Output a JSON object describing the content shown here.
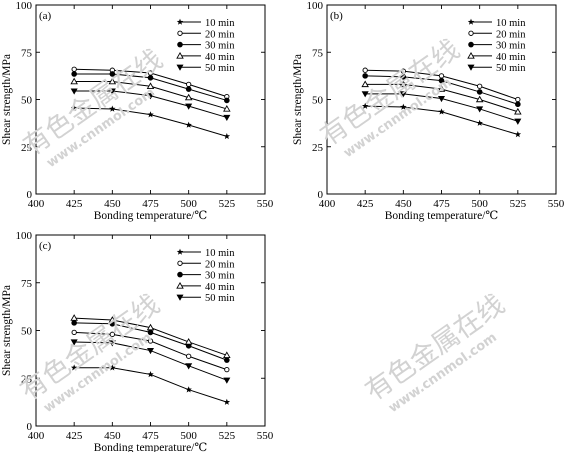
{
  "figure": {
    "watermark": {
      "text": "有色金属在线",
      "url": "www.cnnmol.com"
    }
  },
  "chart_data": [
    {
      "type": "line",
      "panel_label": "(a)",
      "xlabel": "Bonding temperature/℃",
      "ylabel": "Shear strength/MPa",
      "xlim": [
        400,
        550
      ],
      "ylim": [
        0,
        100
      ],
      "xticks": [
        400,
        425,
        450,
        475,
        500,
        525,
        550
      ],
      "yticks": [
        0,
        25,
        50,
        75,
        100
      ],
      "grid": false,
      "legend_position": "top-right",
      "x": [
        425,
        450,
        475,
        500,
        525
      ],
      "series": [
        {
          "name": "10 min",
          "marker": "star",
          "values": [
            45.5,
            45.0,
            42.0,
            36.5,
            30.5
          ]
        },
        {
          "name": "20 min",
          "marker": "circle-open",
          "values": [
            66.0,
            65.5,
            64.0,
            58.0,
            51.5
          ]
        },
        {
          "name": "30 min",
          "marker": "circle-filled",
          "values": [
            63.5,
            63.5,
            61.5,
            55.5,
            49.5
          ]
        },
        {
          "name": "40 min",
          "marker": "triangle-up-open",
          "values": [
            59.5,
            59.5,
            57.0,
            51.0,
            45.0
          ]
        },
        {
          "name": "50 min",
          "marker": "triangle-down",
          "values": [
            54.5,
            54.5,
            52.0,
            46.5,
            40.5
          ]
        }
      ]
    },
    {
      "type": "line",
      "panel_label": "(b)",
      "xlabel": "Bonding temperature/℃",
      "ylabel": "Shear strength/MPa",
      "xlim": [
        400,
        550
      ],
      "ylim": [
        0,
        100
      ],
      "xticks": [
        400,
        425,
        450,
        475,
        500,
        525,
        550
      ],
      "yticks": [
        0,
        25,
        50,
        75,
        100
      ],
      "grid": false,
      "legend_position": "top-right",
      "x": [
        425,
        450,
        475,
        500,
        525
      ],
      "series": [
        {
          "name": "10 min",
          "marker": "star",
          "values": [
            46.5,
            46.0,
            43.5,
            37.5,
            31.5
          ]
        },
        {
          "name": "20 min",
          "marker": "circle-open",
          "values": [
            65.5,
            65.0,
            62.5,
            57.0,
            50.0
          ]
        },
        {
          "name": "30 min",
          "marker": "circle-filled",
          "values": [
            62.5,
            62.0,
            60.0,
            54.0,
            47.5
          ]
        },
        {
          "name": "40 min",
          "marker": "triangle-up-open",
          "values": [
            58.0,
            58.0,
            55.5,
            50.0,
            43.5
          ]
        },
        {
          "name": "50 min",
          "marker": "triangle-down",
          "values": [
            53.0,
            53.0,
            50.5,
            45.0,
            38.5
          ]
        }
      ]
    },
    {
      "type": "line",
      "panel_label": "(c)",
      "xlabel": "Bonding temperature/℃",
      "ylabel": "Shear strength/MPa",
      "xlim": [
        400,
        550
      ],
      "ylim": [
        0,
        100
      ],
      "xticks": [
        400,
        425,
        450,
        475,
        500,
        525,
        550
      ],
      "yticks": [
        0,
        25,
        50,
        75,
        100
      ],
      "grid": false,
      "legend_position": "top-right",
      "x": [
        425,
        450,
        475,
        500,
        525
      ],
      "series": [
        {
          "name": "10 min",
          "marker": "star",
          "values": [
            30.5,
            30.5,
            27.0,
            19.0,
            12.5
          ]
        },
        {
          "name": "20 min",
          "marker": "circle-open",
          "values": [
            49.0,
            48.0,
            44.5,
            36.5,
            29.5
          ]
        },
        {
          "name": "30 min",
          "marker": "circle-filled",
          "values": [
            54.0,
            53.5,
            49.0,
            42.0,
            34.5
          ]
        },
        {
          "name": "40 min",
          "marker": "triangle-up-open",
          "values": [
            56.5,
            55.5,
            51.5,
            44.0,
            37.0
          ]
        },
        {
          "name": "50 min",
          "marker": "triangle-down",
          "values": [
            44.0,
            43.5,
            39.5,
            31.5,
            24.0
          ]
        }
      ]
    }
  ]
}
